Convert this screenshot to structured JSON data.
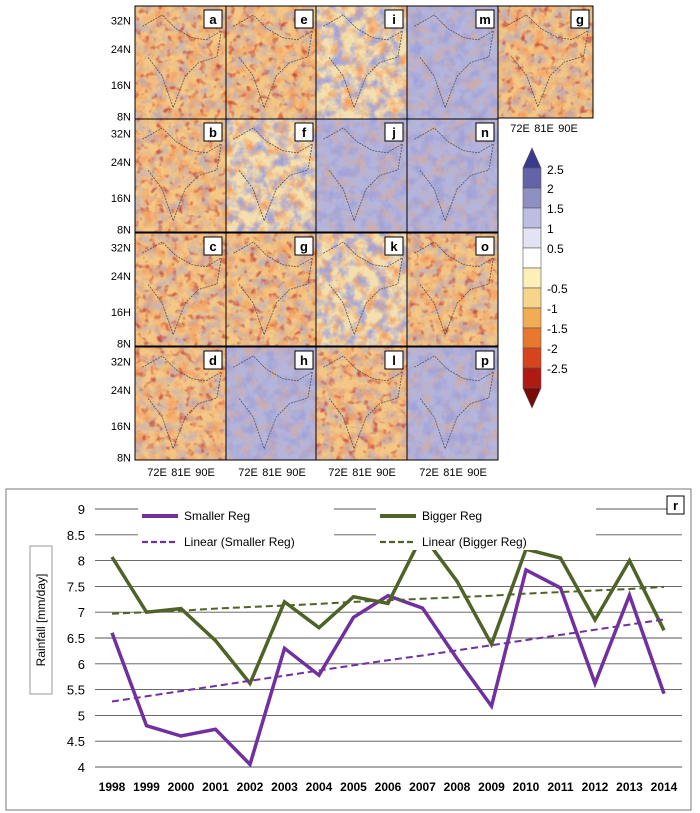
{
  "chart_data": [
    {
      "type": "heatmap",
      "panels": [
        {
          "label": "a",
          "dominant": "warm"
        },
        {
          "label": "e",
          "dominant": "warm"
        },
        {
          "label": "i",
          "dominant": "mixed"
        },
        {
          "label": "m",
          "dominant": "cool"
        },
        {
          "label": "g",
          "dominant": "warm"
        },
        {
          "label": "b",
          "dominant": "warm"
        },
        {
          "label": "f",
          "dominant": "mixed"
        },
        {
          "label": "j",
          "dominant": "cool"
        },
        {
          "label": "n",
          "dominant": "cool"
        },
        {
          "label": "c",
          "dominant": "warm"
        },
        {
          "label": "g",
          "dominant": "warm"
        },
        {
          "label": "k",
          "dominant": "mixed"
        },
        {
          "label": "o",
          "dominant": "warm"
        },
        {
          "label": "d",
          "dominant": "warm"
        },
        {
          "label": "h",
          "dominant": "cool"
        },
        {
          "label": "l",
          "dominant": "warm"
        },
        {
          "label": "p",
          "dominant": "cool"
        }
      ],
      "y_tick_rows": [
        [
          "32N",
          "24N",
          "16N",
          "8N"
        ],
        [
          "32N",
          "24N",
          "16N",
          "8N"
        ],
        [
          "32N",
          "24N",
          "16H",
          "8N"
        ],
        [
          "32N",
          "24N",
          "16N",
          "8N"
        ]
      ],
      "x_ticks": [
        "72E",
        "81E",
        "90E"
      ],
      "colorbar": {
        "ticks": [
          "2.5",
          "2",
          "1.5",
          "1",
          "0.5",
          "-0.5",
          "-1",
          "-1.5",
          "-2",
          "-2.5"
        ],
        "colors": [
          "#3b3b8e",
          "#6263a8",
          "#8e8fc3",
          "#bcbde0",
          "#e3e3f3",
          "#ffffff",
          "#fcf0b8",
          "#f6d48a",
          "#f1ad56",
          "#e8782e",
          "#d7431d",
          "#b01a12",
          "#7a0a06"
        ]
      }
    },
    {
      "type": "line",
      "panel_label": "r",
      "x": [
        "1998",
        "1999",
        "2000",
        "2001",
        "2002",
        "2003",
        "2004",
        "2005",
        "2006",
        "2007",
        "2008",
        "2009",
        "2010",
        "2011",
        "2012",
        "2013",
        "2014"
      ],
      "ylabel": "Rainfall [mm/day]",
      "ylim": [
        4,
        9
      ],
      "y_ticks": [
        "4",
        "4.5",
        "5",
        "5.5",
        "6",
        "6.5",
        "7",
        "7.5",
        "8",
        "8.5",
        "9"
      ],
      "grid": true,
      "legend_placement": "top",
      "series": [
        {
          "name": "Smaller Reg",
          "color": "#7030a0",
          "style": "solid",
          "values": [
            6.6,
            4.8,
            4.6,
            4.73,
            4.05,
            6.3,
            5.78,
            6.9,
            7.32,
            7.08,
            6.1,
            5.18,
            7.82,
            7.47,
            5.62,
            7.33,
            5.42
          ]
        },
        {
          "name": "Bigger Reg",
          "color": "#4f6228",
          "style": "solid",
          "values": [
            8.07,
            7.0,
            7.07,
            6.45,
            5.62,
            7.2,
            6.7,
            7.3,
            7.17,
            8.5,
            7.6,
            6.38,
            8.22,
            8.05,
            6.85,
            8.0,
            6.65
          ]
        },
        {
          "name": "Linear (Smaller Reg)",
          "color": "#7030a0",
          "style": "dashed",
          "values": [
            5.27,
            5.37,
            5.47,
            5.57,
            5.67,
            5.77,
            5.87,
            5.97,
            6.07,
            6.16,
            6.26,
            6.36,
            6.46,
            6.56,
            6.66,
            6.76,
            6.86
          ]
        },
        {
          "name": "Linear (Bigger Reg)",
          "color": "#4f6228",
          "style": "dashed",
          "values": [
            6.97,
            7.0,
            7.03,
            7.07,
            7.1,
            7.13,
            7.16,
            7.2,
            7.23,
            7.26,
            7.29,
            7.32,
            7.36,
            7.39,
            7.42,
            7.45,
            7.49
          ]
        }
      ]
    }
  ]
}
